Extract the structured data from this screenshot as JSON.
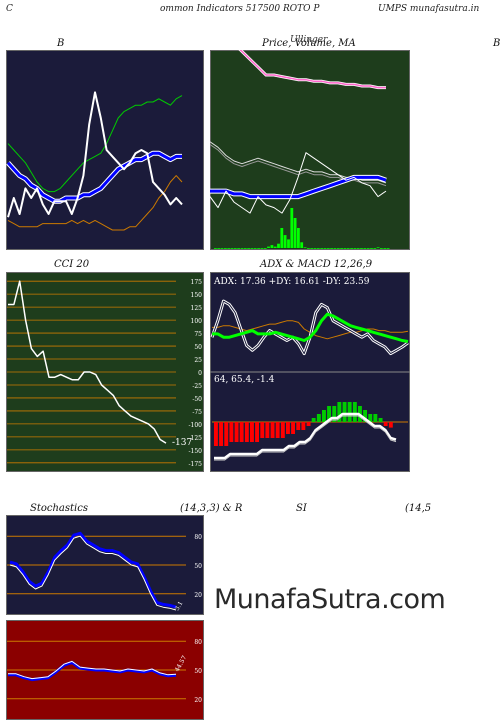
{
  "header": {
    "left": "C",
    "center": "ommon  Indicators 517500  ROTO P",
    "right": "UMPS munafasutra.in"
  },
  "watermark": "MunafaSutra.com",
  "panels": {
    "bollinger": {
      "title": "B"
    },
    "price": {
      "title": "Price,  Volume,  MA",
      "overlap": "Ullinger"
    },
    "right_edge": {
      "title": "B"
    },
    "cci": {
      "title": "CCI 20",
      "value_label": "-137"
    },
    "adx": {
      "title": "ADX  & MACD 12,26,9",
      "readout": "ADX: 17.36   +DY: 16.61 -DY: 23.59"
    },
    "macd": {
      "readout": "64,  65.4,  -1.4"
    },
    "stoch": {
      "title_left": "Stochastics",
      "title_mid": "(14,3,3) & R",
      "title_right_a": "SI",
      "title_right_b": "(14,5",
      "value_label": "3.1"
    },
    "rsi": {
      "value_label": "44.57"
    }
  },
  "colors": {
    "dark_panel": "#1b1b3a",
    "green_panel": "#1e3d1c",
    "rsi_panel": "#8b0000",
    "bollinger_mid": "#0000ff",
    "upper_band": "#00cc00",
    "lower_band": "#cc7a00",
    "price_line": "#ffffff",
    "ma_pink": "#ff66cc",
    "volume": "#00ff00",
    "adx_line": "#00ff00",
    "plus_di": "#ffffff",
    "minus_di": "#cc7a00",
    "macd_pos": "#00cc00",
    "macd_neg": "#ff0000",
    "grid_orange": "#cc7a00",
    "stoch_blue": "#0000ff"
  },
  "chart_data": [
    {
      "id": "bollinger",
      "type": "line",
      "series": [
        {
          "values": [
            72,
            70,
            68,
            66,
            63,
            60,
            58,
            57,
            57,
            58,
            60,
            62,
            64,
            66,
            67,
            68,
            69,
            72,
            76,
            80,
            82,
            83,
            84,
            84,
            85,
            85,
            86,
            85,
            84,
            86,
            87
          ]
        },
        {
          "values": [
            66,
            64,
            62,
            61,
            59,
            58,
            56,
            55,
            54,
            54,
            55,
            55,
            55,
            56,
            56,
            57,
            58,
            60,
            62,
            64,
            65,
            66,
            67,
            67,
            68,
            69,
            69,
            68,
            67,
            68,
            68
          ]
        },
        {
          "values": [
            48,
            47,
            46,
            46,
            46,
            46,
            47,
            47,
            47,
            47,
            47,
            48,
            47,
            48,
            47,
            48,
            47,
            46,
            45,
            45,
            45,
            46,
            46,
            48,
            50,
            52,
            55,
            57,
            60,
            62,
            60
          ]
        },
        {
          "values": [
            49,
            55,
            50,
            58,
            55,
            58,
            53,
            50,
            54,
            54,
            54,
            50,
            55,
            62,
            78,
            88,
            80,
            70,
            68,
            66,
            64,
            66,
            69,
            70,
            69,
            60,
            58,
            56,
            53,
            55,
            53
          ]
        }
      ],
      "ylim": [
        40,
        100
      ]
    },
    {
      "id": "price",
      "type": "line",
      "series": [
        {
          "values": [
            100,
            95,
            90,
            85,
            80,
            75,
            70,
            65,
            65,
            64,
            63,
            62,
            62,
            61,
            61,
            60,
            60,
            59,
            59,
            58,
            58,
            57,
            57
          ]
        },
        {
          "values": [
            68,
            66,
            63,
            61,
            60,
            61,
            62,
            61,
            60,
            59,
            58,
            57,
            58,
            57,
            57,
            56,
            56,
            55,
            55,
            54,
            54,
            54,
            53
          ]
        },
        {
          "values": [
            50,
            50,
            50,
            49,
            49,
            48,
            48,
            48,
            48,
            48,
            48,
            48,
            49,
            50,
            51,
            52,
            53,
            54,
            55,
            55,
            55,
            55,
            54
          ]
        },
        {
          "values": [
            48,
            44,
            50,
            46,
            44,
            42,
            48,
            45,
            44,
            42,
            47,
            55,
            64,
            62,
            60,
            58,
            56,
            54,
            55,
            53,
            52,
            48,
            50
          ]
        }
      ],
      "volume": [
        0,
        0,
        0,
        0,
        0,
        0,
        0,
        0,
        0,
        0,
        0,
        0,
        0,
        0,
        0,
        0,
        1,
        2,
        1,
        3,
        14,
        9,
        6,
        28,
        21,
        14,
        4,
        0.5,
        0,
        0,
        0,
        0,
        0,
        0,
        0,
        0,
        0,
        0,
        0,
        0,
        0,
        0,
        0,
        0,
        0,
        0,
        0,
        0,
        0,
        0.5,
        0,
        0,
        0
      ],
      "ylim": [
        30,
        100
      ]
    },
    {
      "id": "cci",
      "type": "line",
      "ticks": [
        175,
        150,
        125,
        100,
        75,
        50,
        25,
        0,
        -25,
        -50,
        -75,
        -100,
        -125,
        -150,
        -175
      ],
      "values": [
        130,
        130,
        175,
        100,
        45,
        30,
        40,
        -10,
        -10,
        -5,
        -10,
        -15,
        -15,
        0,
        0,
        -5,
        -25,
        -35,
        -45,
        -65,
        -75,
        -85,
        -90,
        -95,
        -100,
        -110,
        -130,
        -137
      ],
      "ylim": [
        -185,
        185
      ]
    },
    {
      "id": "adx",
      "type": "line",
      "series": [
        {
          "values": [
            22,
            22,
            20,
            20,
            21,
            22,
            23,
            24,
            22,
            22,
            22,
            23,
            22,
            21,
            20,
            19,
            18,
            20,
            24,
            30,
            34,
            33,
            31,
            29,
            27,
            26,
            25,
            24,
            23,
            22,
            21,
            20,
            19,
            18,
            17.36
          ]
        },
        {
          "values": [
            20,
            30,
            42,
            40,
            35,
            25,
            15,
            12,
            15,
            20,
            24,
            22,
            20,
            18,
            20,
            16,
            10,
            20,
            35,
            40,
            38,
            30,
            28,
            26,
            24,
            22,
            20,
            22,
            18,
            16,
            14,
            10,
            12,
            14,
            16.61
          ]
        },
        {
          "values": [
            26,
            26,
            27,
            27,
            26,
            25,
            24,
            25,
            26,
            27,
            28,
            28,
            29,
            30,
            30,
            29,
            25,
            23,
            21,
            20,
            19,
            20,
            21,
            22,
            23,
            23,
            24,
            25,
            25,
            24,
            24,
            23,
            23,
            23,
            23.59
          ]
        }
      ],
      "ylim": [
        0,
        50
      ]
    },
    {
      "id": "macd",
      "type": "bar",
      "values": [
        -6,
        -6,
        -6,
        -5,
        -5,
        -5,
        -5,
        -5,
        -5,
        -4,
        -4,
        -4,
        -4,
        -4,
        -3,
        -3,
        -2,
        -2,
        -1,
        1,
        2,
        3,
        4,
        4,
        5,
        5,
        5,
        5,
        4,
        3,
        2,
        2,
        1,
        -1,
        -1.4
      ],
      "ylim": [
        -10,
        10
      ]
    },
    {
      "id": "stochastics",
      "type": "line",
      "ticks": [
        80,
        50,
        20
      ],
      "values": [
        50,
        48,
        40,
        30,
        25,
        28,
        40,
        55,
        62,
        68,
        78,
        80,
        72,
        68,
        64,
        62,
        62,
        60,
        55,
        50,
        48,
        35,
        20,
        8,
        6,
        5,
        3.1
      ],
      "ylim": [
        0,
        100
      ]
    },
    {
      "id": "rsi",
      "type": "line",
      "ticks": [
        80,
        50,
        20
      ],
      "values": [
        45,
        45,
        42,
        40,
        41,
        42,
        48,
        55,
        58,
        52,
        51,
        50,
        50,
        49,
        48,
        50,
        49,
        48,
        50,
        46,
        44,
        44.57
      ],
      "ylim": [
        0,
        100
      ]
    }
  ]
}
